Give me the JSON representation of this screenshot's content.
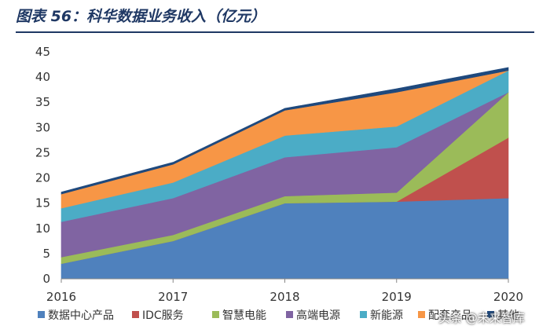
{
  "figure_title": "图表 56：科华数据业务收入（亿元）",
  "watermark": "头条 @未来智库",
  "chart_data": {
    "type": "area",
    "stacked": true,
    "title": "",
    "xlabel": "",
    "ylabel": "",
    "x": [
      "2016",
      "2017",
      "2018",
      "2019",
      "2020"
    ],
    "ylim": [
      0,
      45
    ],
    "yticks": [
      0,
      5,
      10,
      15,
      20,
      25,
      30,
      35,
      40,
      45
    ],
    "grid": false,
    "legend_position": "bottom",
    "series": [
      {
        "name": "数据中心产品",
        "color": "#4f81bd",
        "values": [
          3.0,
          7.5,
          15.0,
          15.3,
          16.0
        ]
      },
      {
        "name": "IDC服务",
        "color": "#c0504d",
        "values": [
          0.0,
          0.0,
          0.0,
          0.0,
          12.0
        ]
      },
      {
        "name": "智慧电能",
        "color": "#9bbb59",
        "values": [
          1.3,
          1.2,
          1.4,
          1.8,
          9.0
        ]
      },
      {
        "name": "高端电源",
        "color": "#8064a2",
        "values": [
          7.0,
          7.3,
          7.7,
          9.0,
          0.0
        ]
      },
      {
        "name": "新能源",
        "color": "#4bacc6",
        "values": [
          2.7,
          3.1,
          4.3,
          4.1,
          4.3
        ]
      },
      {
        "name": "配套产品",
        "color": "#f79646",
        "values": [
          2.8,
          3.6,
          5.0,
          6.8,
          0.0
        ]
      },
      {
        "name": "其他",
        "color": "#1f497d",
        "values": [
          0.4,
          0.4,
          0.4,
          0.7,
          0.6
        ]
      }
    ]
  }
}
